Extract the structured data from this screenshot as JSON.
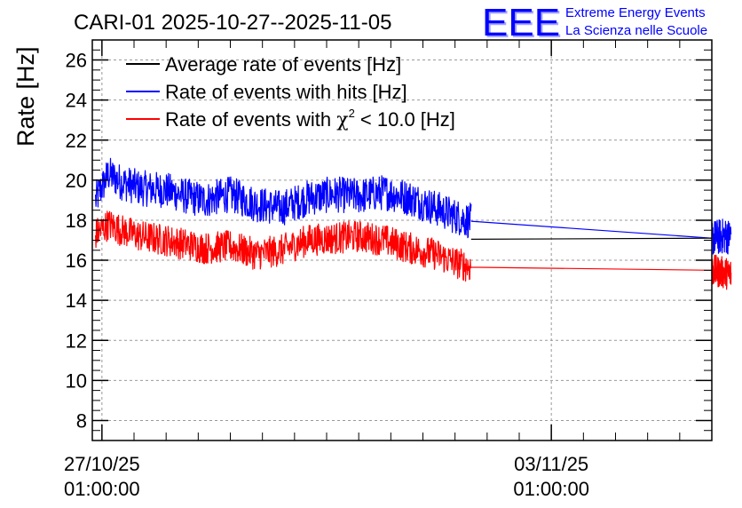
{
  "chart_data": {
    "type": "line",
    "title": "CARI-01 2025-10-27--2025-11-05",
    "ylabel": "Rate [Hz]",
    "xlabel": "",
    "ylim": [
      7,
      27
    ],
    "yticks": [
      8,
      10,
      12,
      14,
      16,
      18,
      20,
      22,
      24,
      26
    ],
    "xlim_days": [
      -0.15,
      9.5
    ],
    "xticks": [
      {
        "day": 0,
        "label_line1": "27/10/25",
        "label_line2": "01:00:00"
      },
      {
        "day": 7,
        "label_line1": "03/11/25",
        "label_line2": "01:00:00"
      }
    ],
    "grid": true,
    "legend_position": "top-left",
    "legend": [
      {
        "name": "Average rate of events [Hz]",
        "color": "#000000"
      },
      {
        "name": "Rate of events with hits [Hz]",
        "color": "#0000ff"
      },
      {
        "name": "Rate of events with χ² < 10.0 [Hz]",
        "color": "#ff0000",
        "label_prefix": "Rate of events with ",
        "label_chi": "χ",
        "label_sup": "2",
        "label_suffix": " < 10.0 [Hz]"
      }
    ],
    "series": [
      {
        "name": "Rate of events with hits [Hz]",
        "color": "#0000ff",
        "x_days": [
          -0.1,
          0.1,
          0.3,
          0.6,
          1.0,
          1.3,
          1.6,
          2.0,
          2.4,
          2.8,
          3.2,
          3.6,
          4.0,
          4.4,
          4.8,
          5.2,
          5.5,
          5.8,
          6.0,
          6.3,
          6.55,
          9.5,
          9.65,
          9.8
        ],
        "values": [
          19.0,
          20.3,
          19.9,
          19.6,
          19.5,
          19.2,
          19.0,
          19.3,
          18.8,
          18.6,
          19.1,
          19.3,
          19.2,
          19.4,
          19.1,
          18.6,
          18.2,
          17.9,
          17.6,
          17.3,
          17.0,
          17.1,
          17.2,
          17.2
        ],
        "noise_amplitude": 0.9,
        "flat_from_day": 5.75,
        "flat_to_day": 9.5
      },
      {
        "name": "Rate of events with χ² < 10.0 [Hz]",
        "color": "#ff0000",
        "x_days": [
          -0.1,
          0.1,
          0.3,
          0.6,
          1.0,
          1.3,
          1.6,
          2.0,
          2.4,
          2.8,
          3.2,
          3.6,
          4.0,
          4.4,
          4.8,
          5.2,
          5.5,
          5.8,
          6.0,
          6.3,
          6.55,
          9.5,
          9.65,
          9.8
        ],
        "values": [
          17.3,
          17.8,
          17.5,
          17.2,
          17.0,
          16.8,
          16.6,
          16.7,
          16.3,
          16.5,
          17.0,
          17.1,
          17.2,
          17.0,
          16.6,
          16.3,
          15.9,
          15.6,
          15.3,
          15.1,
          15.2,
          15.5,
          15.4,
          15.3
        ],
        "noise_amplitude": 0.8,
        "flat_from_day": 5.75,
        "flat_to_day": 9.5
      },
      {
        "name": "Average rate of events [Hz]",
        "color": "#000000",
        "x_days": [
          5.75,
          9.5
        ],
        "values": [
          17.05,
          17.1
        ]
      }
    ]
  },
  "logo": {
    "letters": "EEE",
    "line1": "Extreme Energy Events",
    "line2": "La Scienza nelle Scuole",
    "color": "#0000ff"
  }
}
